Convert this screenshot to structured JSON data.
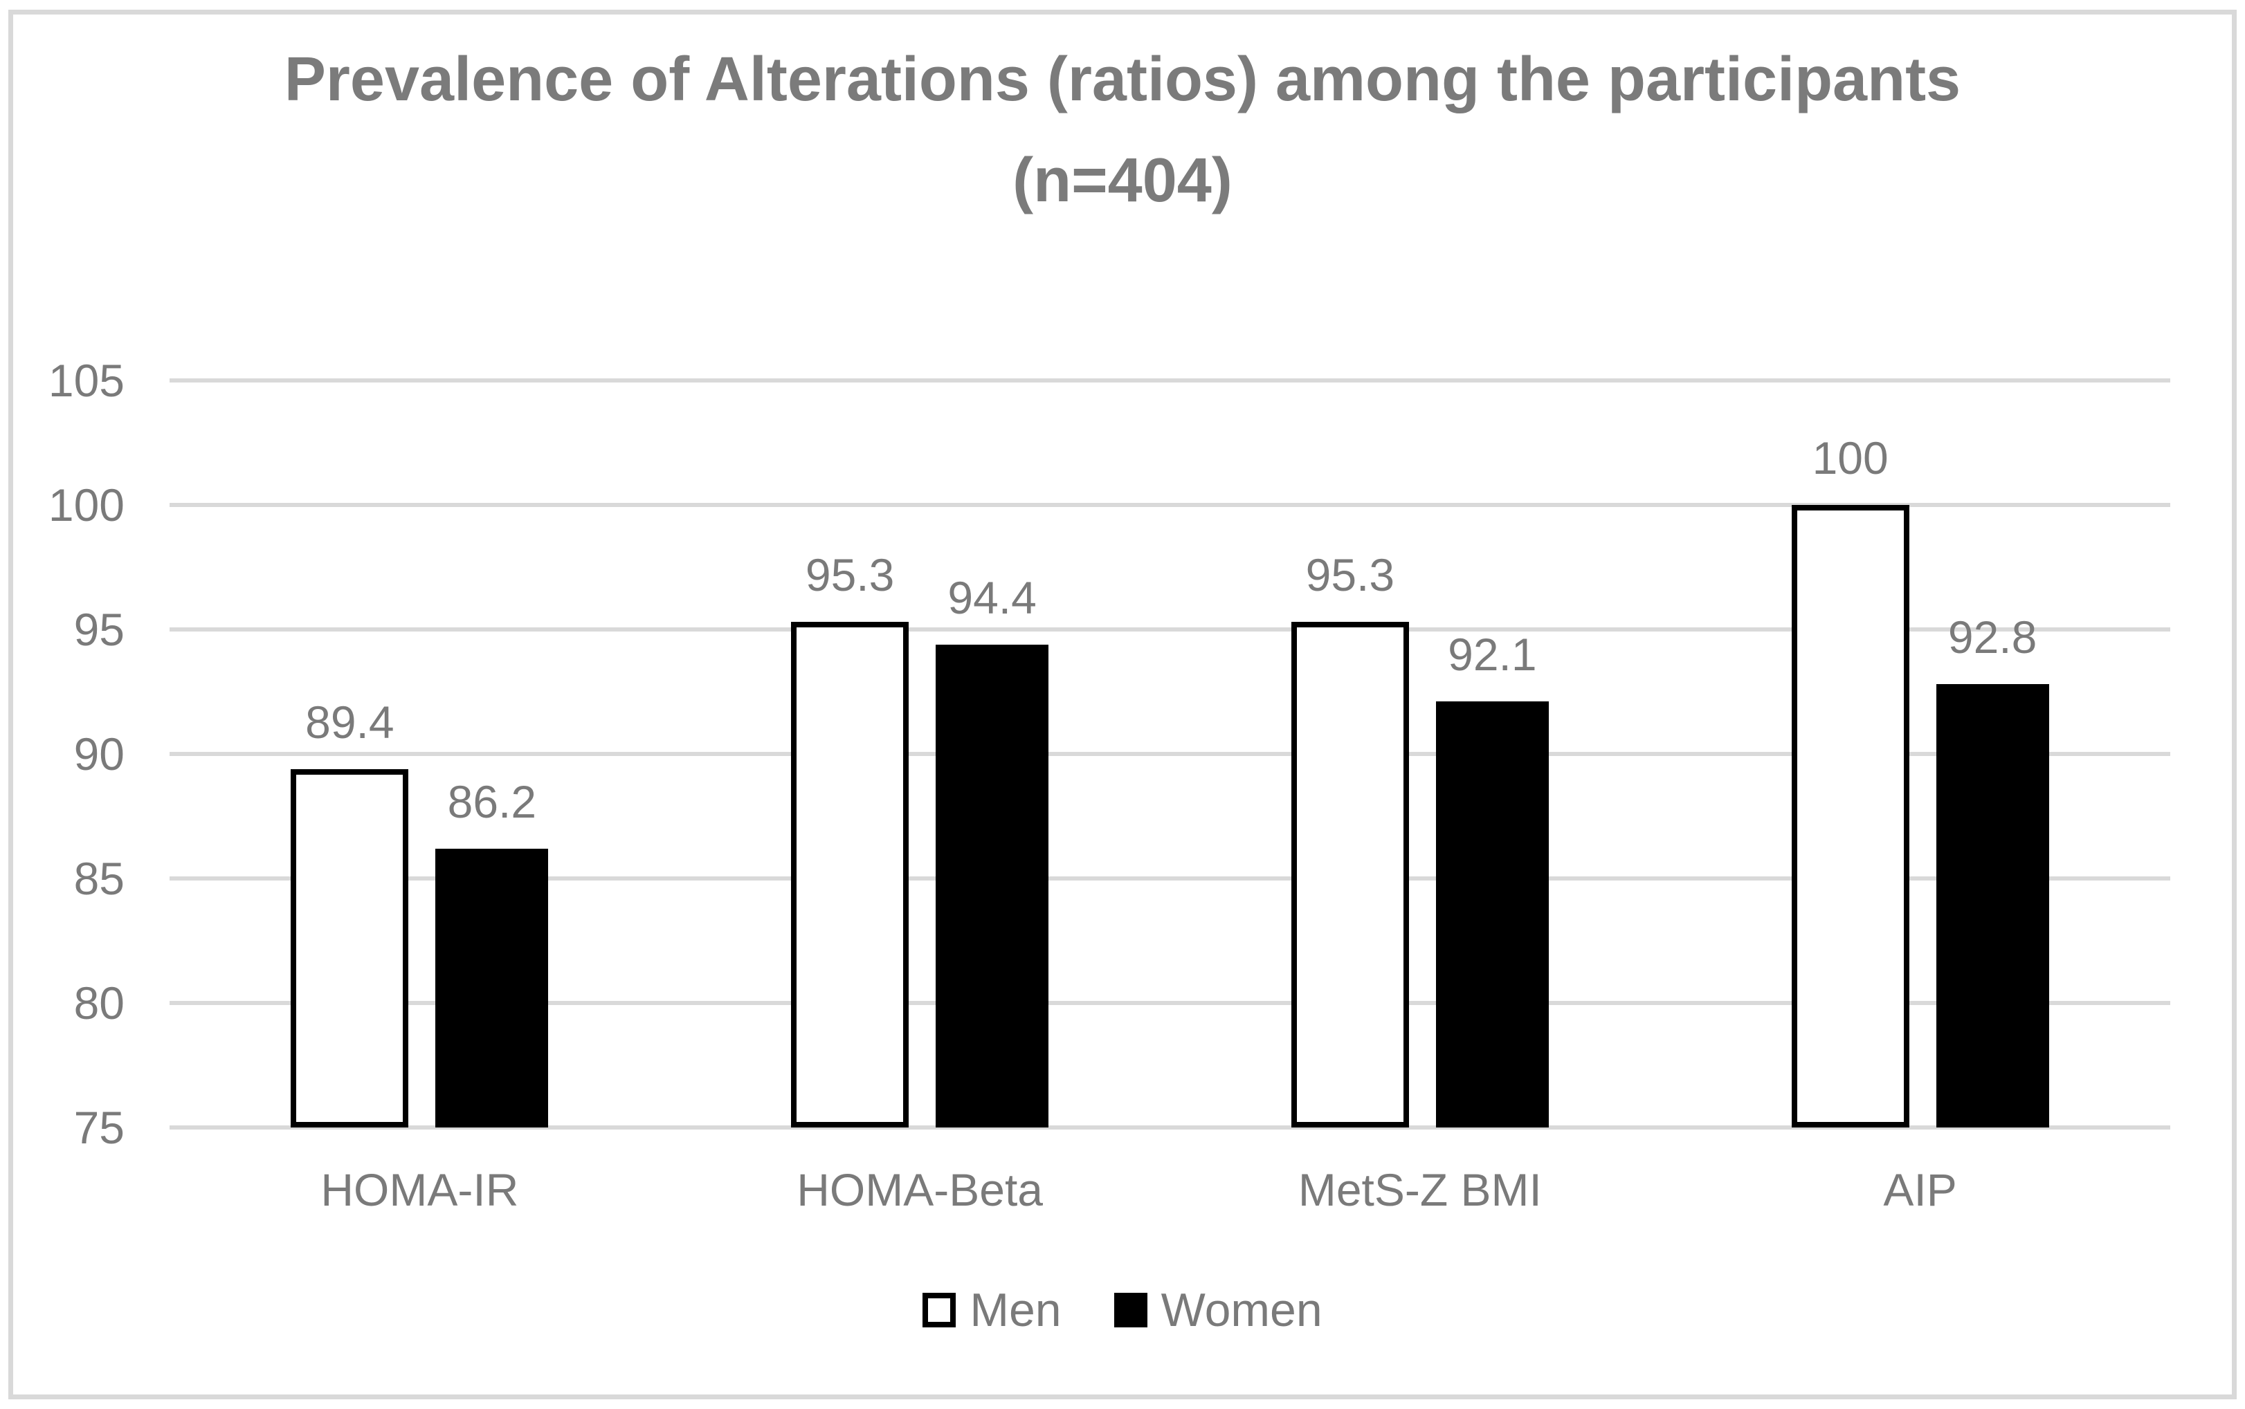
{
  "chart": {
    "title_line1": "Prevalence of Alterations (ratios) among the participants",
    "title_line2": "(n=404)"
  },
  "chart_data": {
    "type": "bar",
    "title": "Prevalence of Alterations (ratios) among the participants (n=404)",
    "categories": [
      "HOMA-IR",
      "HOMA-Beta",
      "MetS-Z BMI",
      "AIP"
    ],
    "series": [
      {
        "name": "Men",
        "values": [
          89.4,
          95.3,
          95.3,
          100
        ],
        "fill": "#ffffff",
        "border": "#000000"
      },
      {
        "name": "Women",
        "values": [
          86.2,
          94.4,
          92.1,
          92.8
        ],
        "fill": "#000000",
        "border": "#000000"
      }
    ],
    "ylim": [
      75,
      105
    ],
    "yticks": [
      75,
      80,
      85,
      90,
      95,
      100,
      105
    ],
    "grid": "horizontal",
    "legend_position": "bottom",
    "data_labels": true,
    "colors": {
      "gridline": "#d9d9d9",
      "frame": "#d9d9d9",
      "text": "#7a7a7a",
      "title": "#7b7b7b"
    }
  }
}
